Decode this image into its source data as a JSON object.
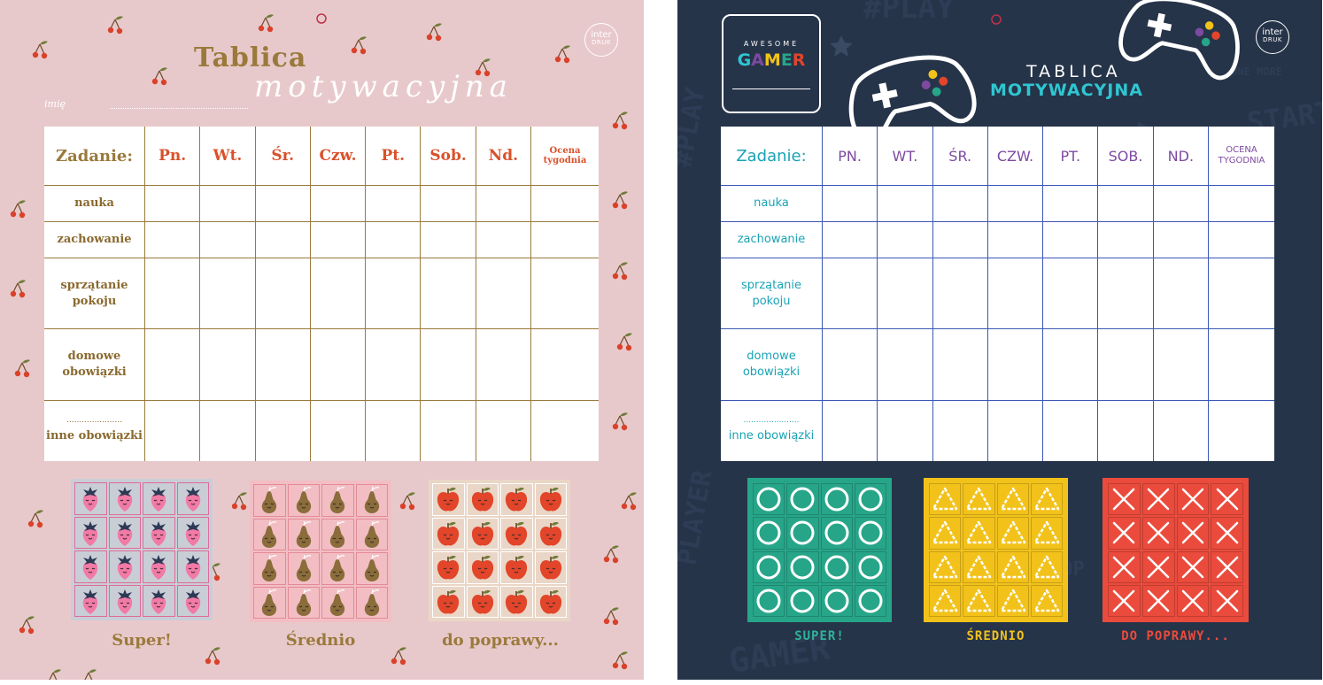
{
  "pink_chart": {
    "brand": {
      "line1": "inter",
      "line2": "DRUK"
    },
    "title": "Tablica",
    "subtitle": "motywacyjna",
    "name_label": "imię",
    "header": {
      "task": "Zadanie:",
      "days": [
        "Pn.",
        "Wt.",
        "Śr.",
        "Czw.",
        "Pt.",
        "Sob.",
        "Nd."
      ],
      "grade": "Ocena tygodnia"
    },
    "tasks": [
      "nauka",
      "zachowanie",
      "sprzątanie pokoju",
      "domowe obowiązki",
      "inne obowiązki"
    ],
    "blank_line": "......................",
    "stickers": [
      {
        "label": "Super!",
        "icon": "strawberry-icon",
        "bg": "#c9ced6"
      },
      {
        "label": "Średnio",
        "icon": "pear-icon",
        "bg": "#f2bec4"
      },
      {
        "label": "do poprawy...",
        "icon": "apple-icon",
        "bg": "#ead6c6"
      }
    ],
    "colors": {
      "background": "#e8c9cb",
      "accent": "#9a7a3c",
      "days": "#d9512a"
    }
  },
  "navy_chart": {
    "brand": {
      "line1": "inter",
      "line2": "DRUK"
    },
    "badge_top": "AWESOME",
    "badge_word": "GAMER",
    "title": "TABLICA",
    "subtitle": "MOTYWACYJNA",
    "header": {
      "task": "Zadanie:",
      "days": [
        "PN.",
        "WT.",
        "ŚR.",
        "CZW.",
        "PT.",
        "SOB.",
        "ND."
      ],
      "grade": "OCENA TYGODNIA"
    },
    "tasks": [
      "nauka",
      "zachowanie",
      "sprzątanie pokoju",
      "domowe obowiązki",
      "inne obowiązki"
    ],
    "blank_line": "......................",
    "background_words": [
      "#PLAY",
      "ONE MORE",
      "START",
      "PLAY",
      "#PLAY",
      "PLAYER",
      "TOP",
      "GAMER"
    ],
    "stickers": [
      {
        "label": "SUPER!",
        "icon": "circle-icon",
        "bg": "#27a589",
        "label_color": "#2fb39a"
      },
      {
        "label": "ŚREDNIO",
        "icon": "triangle-icon",
        "bg": "#f2c21b",
        "label_color": "#f2c21b"
      },
      {
        "label": "DO POPRAWY...",
        "icon": "cross-icon",
        "bg": "#ea4b3c",
        "label_color": "#ea4b3c"
      }
    ],
    "colors": {
      "background": "#263449",
      "lines": "#3b57b6",
      "days": "#7d4aa0",
      "tasks": "#1aa3b5"
    }
  }
}
